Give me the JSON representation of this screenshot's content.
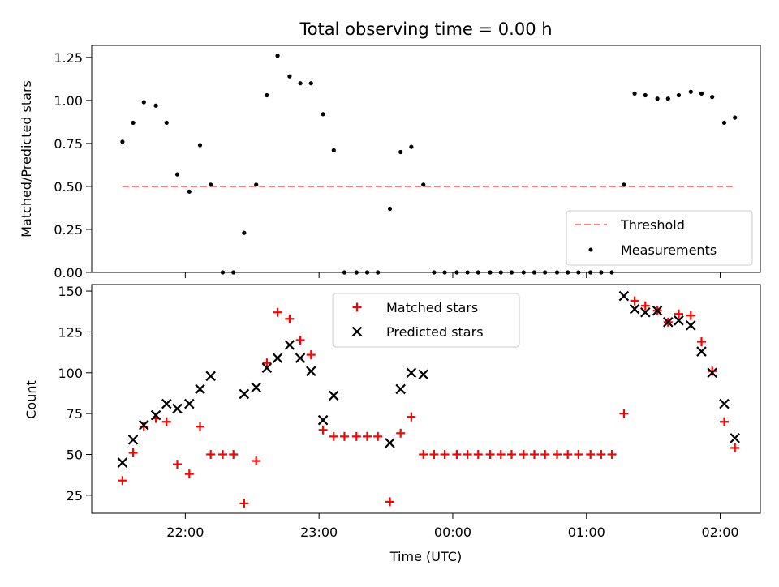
{
  "chart_data": [
    {
      "type": "scatter",
      "panel": "top",
      "title": "Total observing time = 0.00 h",
      "ylabel": "Matched/Predicted stars",
      "xlabel": "",
      "x_axis": "time (UTC), hours since midnight of first night; ticks every hour",
      "xlim": [
        21.3,
        26.3
      ],
      "ylim": [
        0,
        1.32
      ],
      "yticks": [
        0.0,
        0.25,
        0.5,
        0.75,
        1.0,
        1.25
      ],
      "ytick_labels": [
        "0.00",
        "0.25",
        "0.50",
        "0.75",
        "1.00",
        "1.25"
      ],
      "legend": {
        "placement": "lower-right",
        "entries": [
          "Threshold",
          "Measurements"
        ]
      },
      "threshold": {
        "name": "Threshold",
        "value": 0.5,
        "x_range": [
          21.53,
          26.11
        ],
        "color": "#ff7f7f",
        "style": "dashed"
      },
      "series": [
        {
          "name": "Measurements",
          "color": "#000000",
          "marker": "dot",
          "x": [
            21.53,
            21.61,
            21.69,
            21.78,
            21.86,
            21.94,
            22.03,
            22.11,
            22.19,
            22.28,
            22.36,
            22.44,
            22.53,
            22.61,
            22.69,
            22.78,
            22.86,
            22.94,
            23.03,
            23.11,
            23.19,
            23.28,
            23.36,
            23.44,
            23.53,
            23.61,
            23.69,
            23.78,
            23.86,
            23.94,
            24.03,
            24.11,
            24.19,
            24.28,
            24.36,
            24.44,
            24.53,
            24.61,
            24.69,
            24.78,
            24.86,
            24.94,
            25.03,
            25.11,
            25.19,
            25.28,
            25.36,
            25.44,
            25.53,
            25.61,
            25.69,
            25.78,
            25.86,
            25.94,
            26.03,
            26.11
          ],
          "y": [
            0.76,
            0.87,
            0.99,
            0.97,
            0.87,
            0.57,
            0.47,
            0.74,
            0.51,
            0.0,
            0.0,
            0.23,
            0.51,
            1.03,
            1.26,
            1.14,
            1.1,
            1.1,
            0.92,
            0.71,
            0.0,
            0.0,
            0.0,
            0.0,
            0.37,
            0.7,
            0.73,
            0.51,
            0.0,
            0.0,
            0.0,
            0.0,
            0.0,
            0.0,
            0.0,
            0.0,
            0.0,
            0.0,
            0.0,
            0.0,
            0.0,
            0.0,
            0.0,
            0.0,
            0.0,
            0.51,
            1.04,
            1.03,
            1.01,
            1.01,
            1.03,
            1.05,
            1.04,
            1.02,
            0.87,
            0.9
          ]
        }
      ]
    },
    {
      "type": "scatter",
      "panel": "bottom",
      "title": "",
      "xlabel": "Time (UTC)",
      "ylabel": "Count",
      "xlim": [
        21.3,
        26.3
      ],
      "ylim": [
        14,
        154
      ],
      "xticks": [
        22,
        23,
        24,
        25,
        26
      ],
      "xtick_labels": [
        "22:00",
        "23:00",
        "00:00",
        "01:00",
        "02:00"
      ],
      "yticks": [
        25,
        50,
        75,
        100,
        125,
        150
      ],
      "ytick_labels": [
        "25",
        "50",
        "75",
        "100",
        "125",
        "150"
      ],
      "legend": {
        "placement": "upper-center",
        "entries": [
          "Matched stars",
          "Predicted stars"
        ]
      },
      "series": [
        {
          "name": "Matched stars",
          "color": "#ff0000",
          "marker": "plus",
          "x": [
            21.53,
            21.61,
            21.69,
            21.78,
            21.86,
            21.94,
            22.03,
            22.11,
            22.19,
            22.28,
            22.36,
            22.44,
            22.53,
            22.61,
            22.69,
            22.78,
            22.86,
            22.94,
            23.03,
            23.11,
            23.19,
            23.28,
            23.36,
            23.44,
            23.53,
            23.61,
            23.69,
            23.78,
            23.86,
            23.94,
            24.03,
            24.11,
            24.19,
            24.28,
            24.36,
            24.44,
            24.53,
            24.61,
            24.69,
            24.78,
            24.86,
            24.94,
            25.03,
            25.11,
            25.19,
            25.28,
            25.36,
            25.44,
            25.53,
            25.61,
            25.69,
            25.78,
            25.86,
            25.94,
            26.03,
            26.11
          ],
          "y": [
            34,
            51,
            67,
            72,
            70,
            44,
            38,
            67,
            50,
            50,
            50,
            20,
            46,
            106,
            137,
            133,
            120,
            111,
            65,
            61,
            61,
            61,
            61,
            61,
            21,
            63,
            73,
            50,
            50,
            50,
            50,
            50,
            50,
            50,
            50,
            50,
            50,
            50,
            50,
            50,
            50,
            50,
            50,
            50,
            50,
            75,
            144,
            141,
            138,
            131,
            136,
            135,
            119,
            101,
            70,
            54
          ]
        },
        {
          "name": "Predicted stars",
          "color": "#000000",
          "marker": "x",
          "x": [
            21.53,
            21.61,
            21.69,
            21.78,
            21.86,
            21.94,
            22.03,
            22.11,
            22.19,
            22.44,
            22.53,
            22.61,
            22.69,
            22.78,
            22.86,
            22.94,
            23.03,
            23.11,
            23.53,
            23.61,
            23.69,
            23.78,
            25.28,
            25.36,
            25.44,
            25.53,
            25.61,
            25.69,
            25.78,
            25.86,
            25.94,
            26.03,
            26.11
          ],
          "y": [
            45,
            59,
            68,
            74,
            81,
            78,
            81,
            90,
            98,
            87,
            91,
            103,
            109,
            117,
            109,
            101,
            71,
            86,
            57,
            90,
            100,
            99,
            147,
            139,
            137,
            138,
            131,
            132,
            129,
            113,
            100,
            81,
            60
          ]
        }
      ]
    }
  ]
}
